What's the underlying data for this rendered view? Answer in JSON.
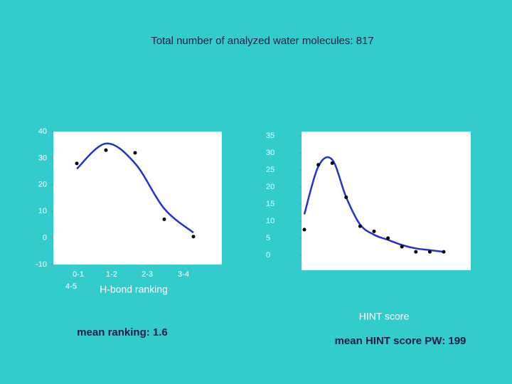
{
  "title": "Total number of analyzed water molecules:   817",
  "chart_data": [
    {
      "type": "scatter-fit",
      "categories": [
        "0-1",
        "1-2",
        "2-3",
        "3-4",
        "4-5"
      ],
      "x_label": "H-bond ranking",
      "series": [
        {
          "color": "#000000",
          "values": [
            28,
            33,
            32,
            7,
            0.5
          ]
        },
        {
          "color": "#2233cc",
          "values": [
            26,
            35.5,
            28,
            11,
            2
          ]
        }
      ],
      "ylim": [
        -10,
        40
      ],
      "yticks": [
        -10,
        0,
        10,
        20,
        30,
        40
      ],
      "note": "mean ranking: 1.6"
    },
    {
      "type": "scatter-fit",
      "categories": [
        null,
        null,
        null,
        null,
        null,
        null,
        null,
        null,
        null,
        null,
        null
      ],
      "x_label": "HINT score",
      "series": [
        {
          "color": "#000000",
          "values": [
            7.5,
            26.5,
            27,
            17,
            8.5,
            7,
            5,
            2.5,
            1,
            1,
            1
          ]
        },
        {
          "color": "#2233cc",
          "values": [
            12,
            26,
            28,
            17,
            9,
            6,
            4.5,
            3,
            2,
            1.5,
            1
          ]
        }
      ],
      "ylim": [
        -4.4,
        36.25
      ],
      "yticks": [
        0,
        5,
        10,
        15,
        20,
        25,
        30,
        35
      ],
      "note": "mean HINT score PW: 199"
    }
  ]
}
